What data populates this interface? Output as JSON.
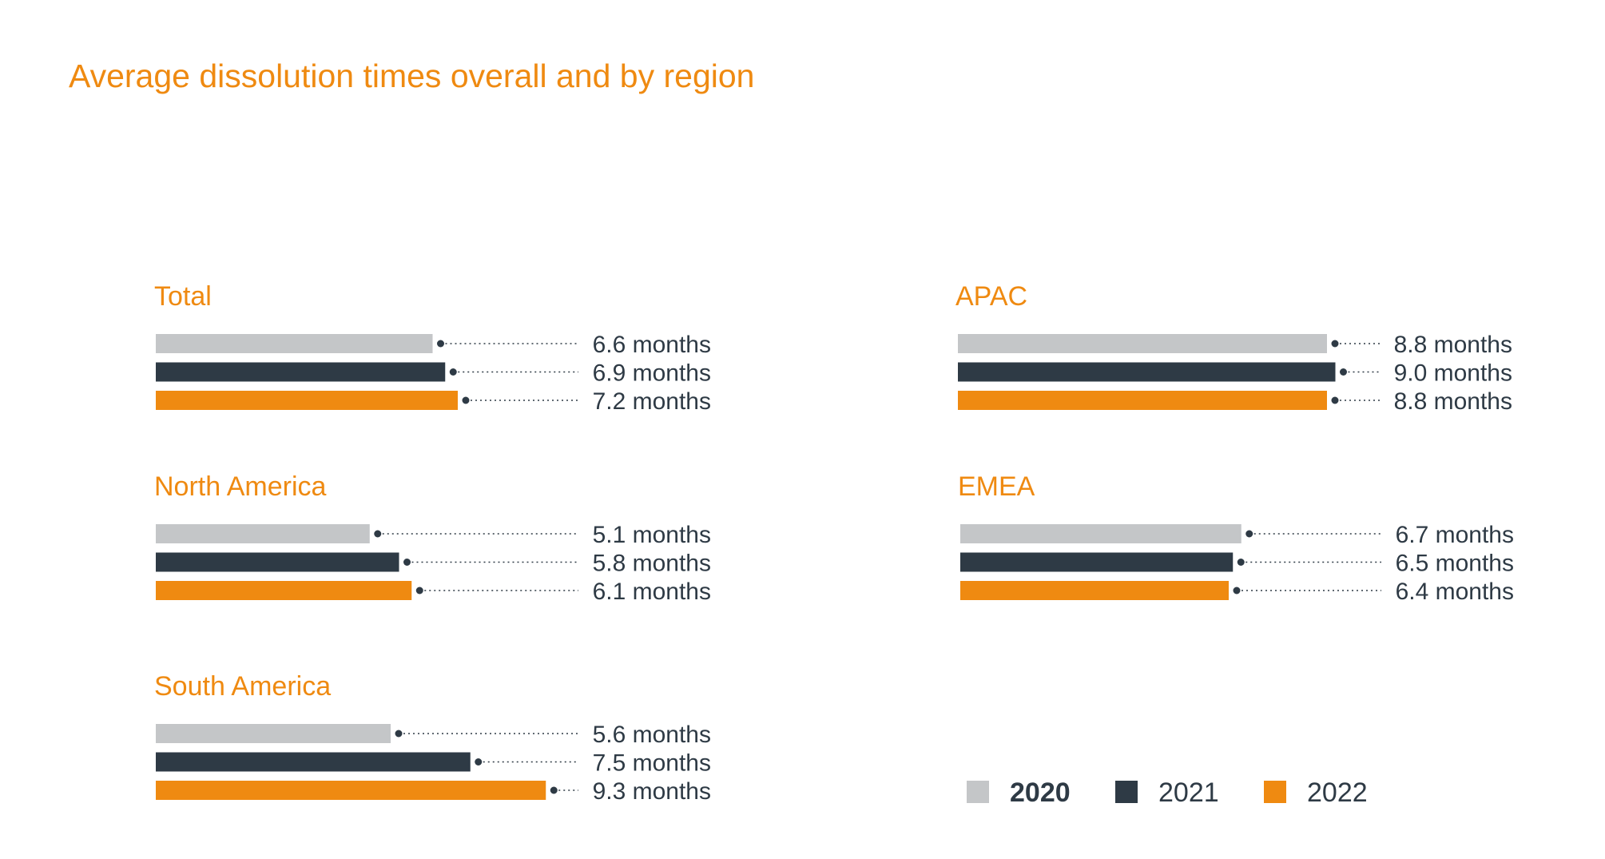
{
  "title": "Average dissolution times overall and by region",
  "unit_suffix": "months",
  "colors": {
    "2020": "#C4C6C8",
    "2021": "#2E3A45",
    "2022": "#EF8A11",
    "title": "#EF8A11",
    "text": "#2E3A45"
  },
  "chart_data": {
    "type": "bar",
    "orientation": "horizontal",
    "title": "Average dissolution times overall and by region",
    "legend": {
      "position": "bottom-right",
      "entries": [
        "2020",
        "2021",
        "2022"
      ]
    },
    "grid": false,
    "series": [
      {
        "name": "2020",
        "color": "#C4C6C8"
      },
      {
        "name": "2021",
        "color": "#2E3A45"
      },
      {
        "name": "2022",
        "color": "#EF8A11"
      }
    ],
    "groups": [
      {
        "name": "Total",
        "values": [
          6.6,
          6.9,
          7.2
        ],
        "labels": [
          "6.6 months",
          "6.9 months",
          "7.2 months"
        ]
      },
      {
        "name": "North America",
        "values": [
          5.1,
          5.8,
          6.1
        ],
        "labels": [
          "5.1 months",
          "5.8 months",
          "6.1 months"
        ]
      },
      {
        "name": "South America",
        "values": [
          5.6,
          7.5,
          9.3
        ],
        "labels": [
          "5.6 months",
          "7.5 months",
          "9.3 months"
        ]
      },
      {
        "name": "APAC",
        "values": [
          8.8,
          9.0,
          8.8
        ],
        "labels": [
          "8.8 months",
          "9.0 months",
          "8.8 months"
        ]
      },
      {
        "name": "EMEA",
        "values": [
          6.7,
          6.5,
          6.4
        ],
        "labels": [
          "6.7 months",
          "6.5 months",
          "6.4 months"
        ]
      }
    ]
  }
}
